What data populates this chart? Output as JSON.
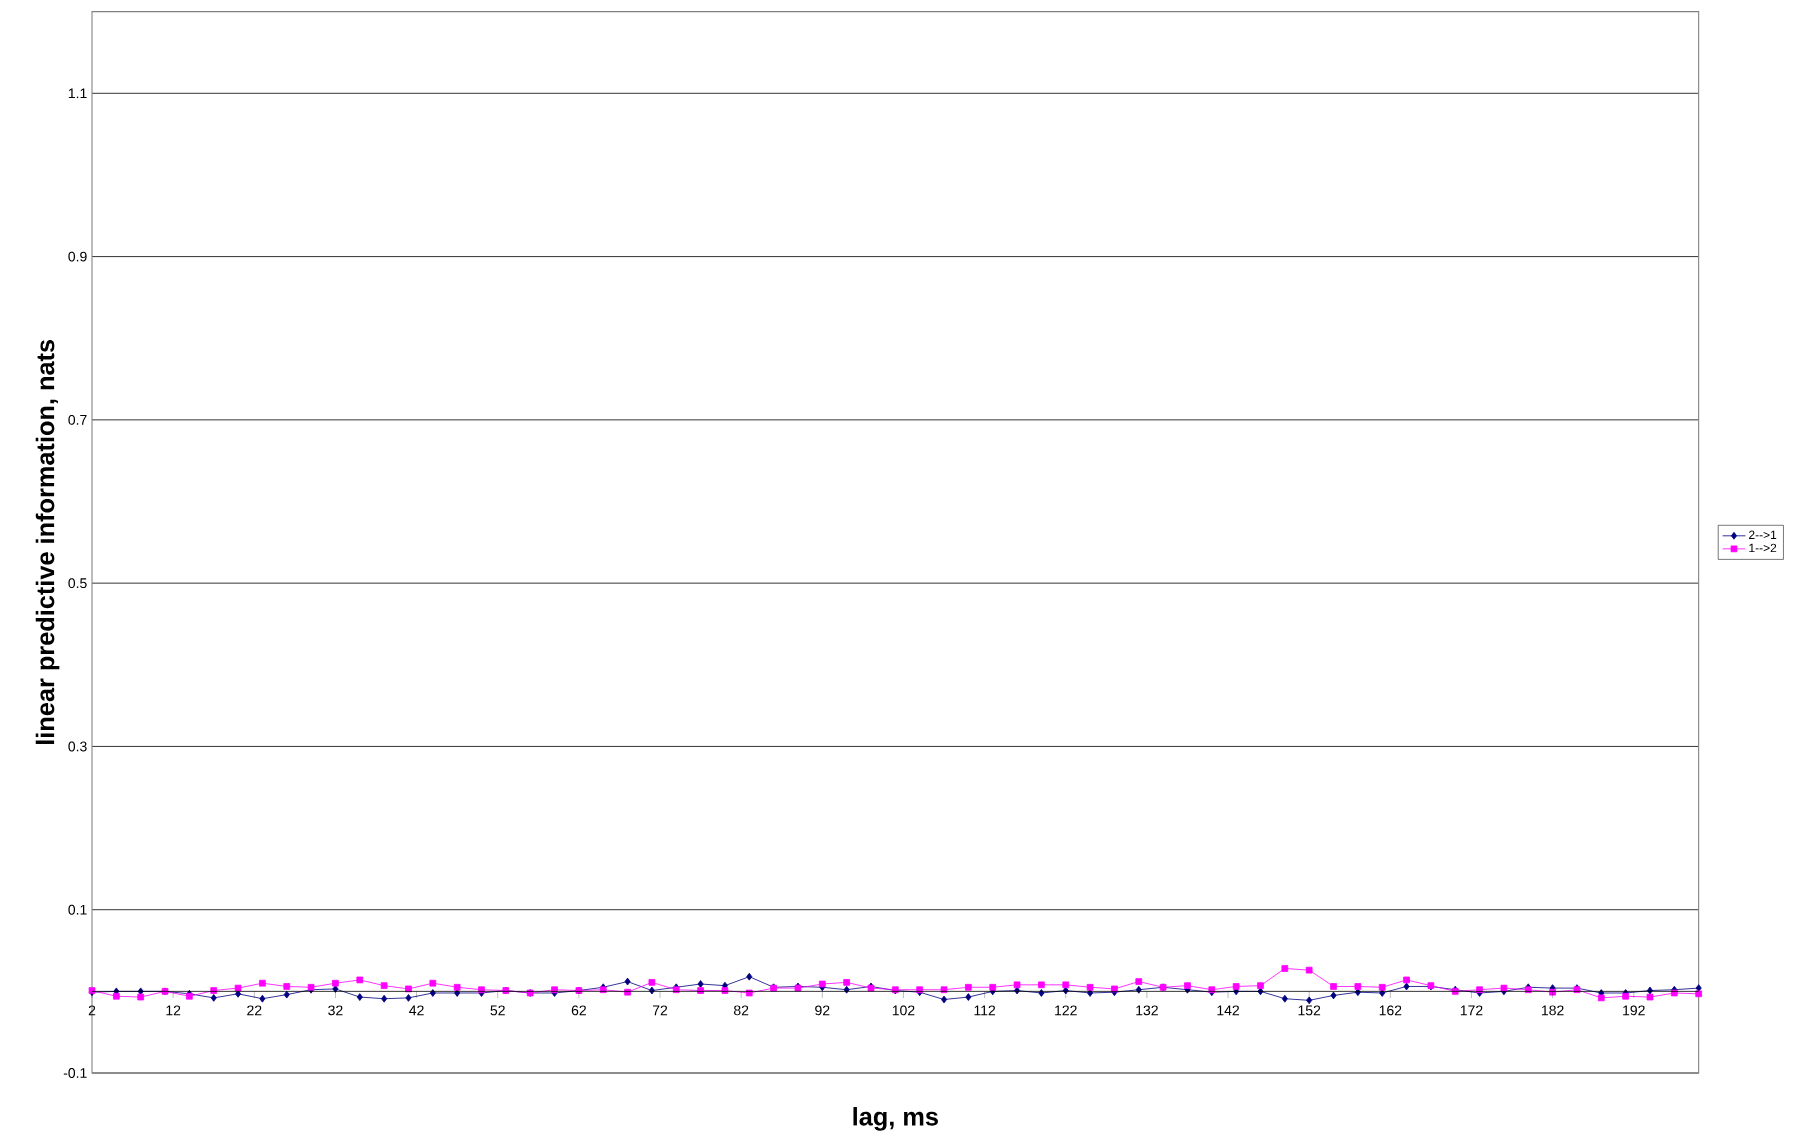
{
  "chart_data": {
    "type": "line",
    "xlabel": "lag, ms",
    "ylabel": "linear predictive information, nats",
    "xlim": [
      2,
      200
    ],
    "xticks": [
      2,
      12,
      22,
      32,
      42,
      52,
      62,
      72,
      82,
      92,
      102,
      112,
      122,
      132,
      142,
      152,
      162,
      172,
      182,
      192
    ],
    "ylim": [
      -0.1,
      1.2
    ],
    "yticks": [
      -0.1,
      0.1,
      0.3,
      0.5,
      0.7,
      0.9,
      1.1
    ],
    "grid": "y",
    "legend": "right",
    "x": [
      2,
      5,
      8,
      11,
      14,
      17,
      20,
      23,
      26,
      29,
      32,
      35,
      38,
      41,
      44,
      47,
      50,
      53,
      56,
      59,
      62,
      65,
      68,
      71,
      74,
      77,
      80,
      83,
      86,
      89,
      92,
      95,
      98,
      101,
      104,
      107,
      110,
      113,
      116,
      119,
      122,
      125,
      128,
      131,
      134,
      137,
      140,
      143,
      146,
      149,
      152,
      155,
      158,
      161,
      164,
      167,
      170,
      173,
      176,
      179,
      182,
      185,
      188,
      191,
      194,
      197,
      200
    ],
    "series": [
      {
        "name": "2-->1",
        "color": "#000080",
        "marker": "diamond",
        "values": [
          -0.001,
          0.0,
          0.0,
          0.0,
          -0.003,
          -0.008,
          -0.003,
          -0.009,
          -0.004,
          0.002,
          0.003,
          -0.007,
          -0.009,
          -0.008,
          -0.002,
          -0.002,
          -0.002,
          0.001,
          -0.002,
          -0.002,
          0.001,
          0.005,
          0.012,
          0.001,
          0.005,
          0.009,
          0.007,
          0.018,
          0.005,
          0.006,
          0.005,
          0.002,
          0.006,
          0.001,
          -0.001,
          -0.01,
          -0.007,
          0.0,
          0.001,
          -0.002,
          0.001,
          -0.002,
          -0.001,
          0.002,
          0.005,
          0.002,
          -0.001,
          0.0,
          0.0,
          -0.009,
          -0.011,
          -0.005,
          -0.001,
          -0.002,
          0.006,
          0.006,
          0.002,
          -0.002,
          0.0,
          0.005,
          0.004,
          0.004,
          -0.002,
          -0.002,
          0.001,
          0.002,
          0.004
        ]
      },
      {
        "name": "1-->2",
        "color": "#ff00ff",
        "marker": "square",
        "values": [
          0.001,
          -0.006,
          -0.007,
          0.0,
          -0.006,
          0.001,
          0.004,
          0.01,
          0.006,
          0.005,
          0.01,
          0.014,
          0.007,
          0.003,
          0.01,
          0.005,
          0.002,
          0.001,
          -0.002,
          0.002,
          0.001,
          0.002,
          -0.001,
          0.011,
          0.002,
          0.001,
          0.001,
          -0.002,
          0.004,
          0.004,
          0.009,
          0.011,
          0.004,
          0.002,
          0.002,
          0.002,
          0.005,
          0.005,
          0.008,
          0.008,
          0.008,
          0.005,
          0.003,
          0.012,
          0.005,
          0.007,
          0.002,
          0.006,
          0.007,
          0.028,
          0.026,
          0.006,
          0.006,
          0.005,
          0.014,
          0.007,
          0.0,
          0.002,
          0.004,
          0.002,
          -0.001,
          0.002,
          -0.008,
          -0.006,
          -0.007,
          -0.002,
          -0.003
        ]
      }
    ]
  }
}
